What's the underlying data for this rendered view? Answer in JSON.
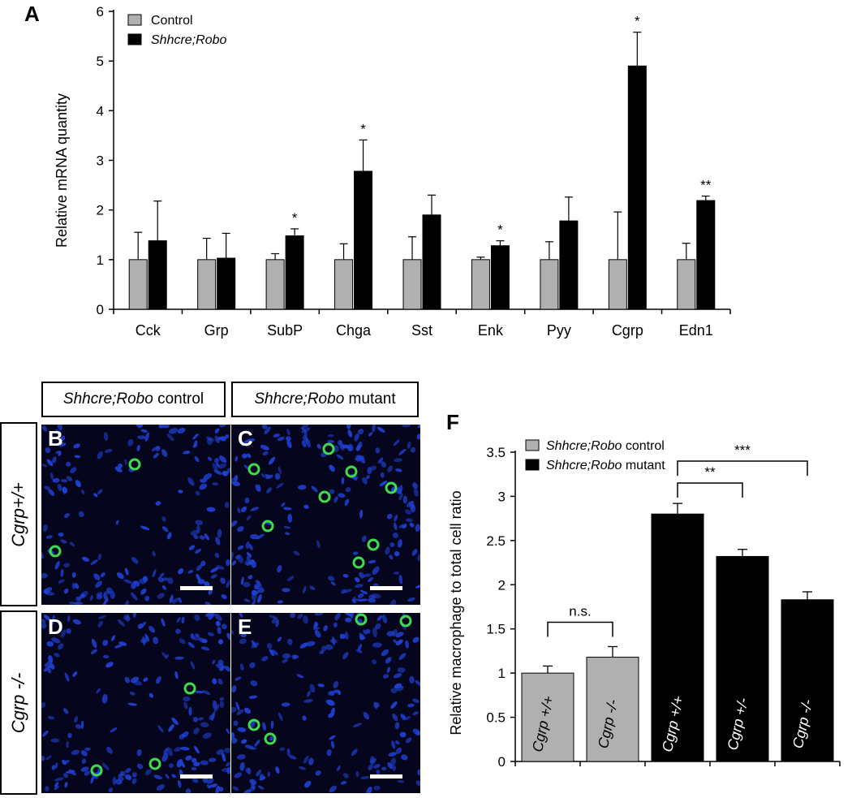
{
  "panels": {
    "a": {
      "letter": "A"
    },
    "b": {
      "letter": "B"
    },
    "c": {
      "letter": "C"
    },
    "d": {
      "letter": "D"
    },
    "e": {
      "letter": "E"
    },
    "f": {
      "letter": "F"
    }
  },
  "micrograph_grid": {
    "column_headers": [
      {
        "italic": "Shhcre;Robo",
        "rest": " control"
      },
      {
        "italic": "Shhcre;Robo",
        "rest": " mutant"
      }
    ],
    "row_headers": [
      "Cgrp+/+",
      "Cgrp -/-"
    ],
    "colors": {
      "background": "#05061e",
      "nuclei": "#1f3fd0",
      "macrophage": "#3ddc4c",
      "scalebar": "#ffffff"
    }
  },
  "chart_data": [
    {
      "type": "bar",
      "panel": "A",
      "title": "",
      "xlabel": "",
      "ylabel": "Relative mRNA quantity",
      "ylim": [
        0,
        6
      ],
      "yticks": [
        0,
        1,
        2,
        3,
        4,
        5,
        6
      ],
      "categories": [
        "Cck",
        "Grp",
        "SubP",
        "Chga",
        "Sst",
        "Enk",
        "Pyy",
        "Cgrp",
        "Edn1"
      ],
      "legend_position": "top-left",
      "series": [
        {
          "name": "Control",
          "color": "#b0b0b0",
          "values": [
            1,
            1,
            1,
            1,
            1,
            1,
            1,
            1,
            1
          ],
          "errors": [
            0.55,
            0.43,
            0.12,
            0.32,
            0.46,
            0.05,
            0.36,
            0.96,
            0.33
          ]
        },
        {
          "name": "Shhcre;Robo",
          "color": "#000000",
          "values": [
            1.38,
            1.03,
            1.48,
            2.78,
            1.9,
            1.28,
            1.78,
            4.9,
            2.19
          ],
          "errors": [
            0.8,
            0.5,
            0.14,
            0.63,
            0.4,
            0.1,
            0.48,
            0.68,
            0.09
          ]
        }
      ],
      "significance": [
        "",
        "",
        "*",
        "*",
        "",
        "*",
        "",
        "*",
        "**"
      ]
    },
    {
      "type": "bar",
      "panel": "F",
      "title": "",
      "xlabel": "",
      "ylabel": "Relative  macrophage to total cell ratio",
      "ylim": [
        0,
        3.5
      ],
      "yticks": [
        "0",
        "0.5",
        "1",
        "1.5",
        "2",
        "2.5",
        "3",
        "3.5"
      ],
      "legend_position": "top-left",
      "legend": [
        {
          "italic": "Shhcre;Robo",
          "rest": " control",
          "color": "#b0b0b0"
        },
        {
          "italic": "Shhcre;Robo",
          "rest": " mutant",
          "color": "#000000"
        }
      ],
      "bars": [
        {
          "label": "Cgrp +/+",
          "value": 1.0,
          "error": 0.08,
          "group": "control",
          "color": "#b0b0b0"
        },
        {
          "label": "Cgrp -/-",
          "value": 1.18,
          "error": 0.12,
          "group": "control",
          "color": "#b0b0b0"
        },
        {
          "label": "Cgrp +/+",
          "value": 2.8,
          "error": 0.12,
          "group": "mutant",
          "color": "#000000"
        },
        {
          "label": "Cgrp +/-",
          "value": 2.32,
          "error": 0.08,
          "group": "mutant",
          "color": "#000000"
        },
        {
          "label": "Cgrp -/-",
          "value": 1.83,
          "error": 0.09,
          "group": "mutant",
          "color": "#000000"
        }
      ],
      "comparisons": [
        {
          "from": 0,
          "to": 1,
          "label": "n.s."
        },
        {
          "from": 2,
          "to": 3,
          "label": "**"
        },
        {
          "from": 2,
          "to": 4,
          "label": "***"
        }
      ]
    }
  ]
}
